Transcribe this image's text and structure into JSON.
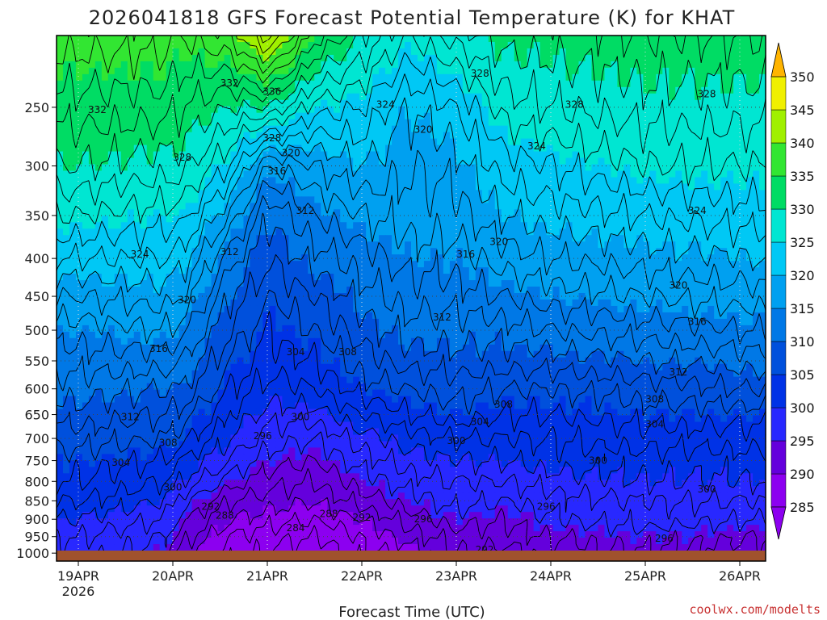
{
  "chart_data": {
    "type": "heatmap",
    "title": "2026041818 GFS Forecast Potential Temperature (K) for KHAT",
    "xlabel": "Forecast Time (UTC)",
    "ylabel": "",
    "credit": "coolwx.com/modelts",
    "x_ticks": [
      "19APR",
      "20APR",
      "21APR",
      "22APR",
      "23APR",
      "24APR",
      "25APR",
      "26APR"
    ],
    "x_year": "2026",
    "y_ticks": [
      250,
      300,
      350,
      400,
      450,
      500,
      550,
      600,
      650,
      700,
      750,
      800,
      850,
      900,
      950,
      1000
    ],
    "ylim": [
      1025,
      200
    ],
    "y_scale": "log-pressure",
    "grid": "dotted",
    "colorbar": {
      "levels": [
        285,
        290,
        295,
        300,
        305,
        310,
        315,
        320,
        325,
        330,
        335,
        340,
        345,
        350
      ],
      "colors": [
        "#8c00f0",
        "#6400dc",
        "#2828ff",
        "#0032e6",
        "#0050dc",
        "#0078e6",
        "#00a0f0",
        "#00c8f5",
        "#00e6d2",
        "#00dc64",
        "#32e632",
        "#a0f000",
        "#f0f000",
        "#ffb400"
      ],
      "extend": "both",
      "placement": "right"
    },
    "contour_labels": [
      {
        "value": "332",
        "time": 0.2,
        "p": 252
      },
      {
        "value": "332",
        "time": 1.6,
        "p": 232
      },
      {
        "value": "336",
        "time": 2.05,
        "p": 238
      },
      {
        "value": "328",
        "time": 2.05,
        "p": 275
      },
      {
        "value": "320",
        "time": 2.25,
        "p": 288
      },
      {
        "value": "316",
        "time": 2.1,
        "p": 305
      },
      {
        "value": "312",
        "time": 2.4,
        "p": 345
      },
      {
        "value": "328",
        "time": 1.1,
        "p": 292
      },
      {
        "value": "324",
        "time": 0.65,
        "p": 395
      },
      {
        "value": "312",
        "time": 1.6,
        "p": 392
      },
      {
        "value": "320",
        "time": 1.15,
        "p": 455
      },
      {
        "value": "316",
        "time": 0.85,
        "p": 530
      },
      {
        "value": "312",
        "time": 0.55,
        "p": 655
      },
      {
        "value": "308",
        "time": 0.95,
        "p": 710
      },
      {
        "value": "304",
        "time": 0.45,
        "p": 755
      },
      {
        "value": "300",
        "time": 1.0,
        "p": 815
      },
      {
        "value": "292",
        "time": 1.4,
        "p": 865
      },
      {
        "value": "288",
        "time": 1.55,
        "p": 890
      },
      {
        "value": "296",
        "time": 1.95,
        "p": 695
      },
      {
        "value": "300",
        "time": 2.35,
        "p": 655
      },
      {
        "value": "304",
        "time": 2.3,
        "p": 535
      },
      {
        "value": "308",
        "time": 2.85,
        "p": 535
      },
      {
        "value": "284",
        "time": 2.3,
        "p": 925
      },
      {
        "value": "288",
        "time": 2.65,
        "p": 885
      },
      {
        "value": "292",
        "time": 3.0,
        "p": 895
      },
      {
        "value": "296",
        "time": 3.65,
        "p": 900
      },
      {
        "value": "324",
        "time": 3.25,
        "p": 248
      },
      {
        "value": "320",
        "time": 3.65,
        "p": 268
      },
      {
        "value": "328",
        "time": 4.25,
        "p": 225
      },
      {
        "value": "316",
        "time": 4.1,
        "p": 395
      },
      {
        "value": "320",
        "time": 4.45,
        "p": 380
      },
      {
        "value": "312",
        "time": 3.85,
        "p": 480
      },
      {
        "value": "308",
        "time": 4.5,
        "p": 630
      },
      {
        "value": "304",
        "time": 4.25,
        "p": 665
      },
      {
        "value": "300",
        "time": 4.0,
        "p": 705
      },
      {
        "value": "292",
        "time": 4.3,
        "p": 990
      },
      {
        "value": "296",
        "time": 4.95,
        "p": 865
      },
      {
        "value": "324",
        "time": 4.85,
        "p": 282
      },
      {
        "value": "328",
        "time": 5.25,
        "p": 248
      },
      {
        "value": "328",
        "time": 6.65,
        "p": 240
      },
      {
        "value": "324",
        "time": 6.55,
        "p": 345
      },
      {
        "value": "320",
        "time": 6.35,
        "p": 435
      },
      {
        "value": "316",
        "time": 6.55,
        "p": 487
      },
      {
        "value": "312",
        "time": 6.35,
        "p": 570
      },
      {
        "value": "308",
        "time": 6.1,
        "p": 620
      },
      {
        "value": "304",
        "time": 6.1,
        "p": 670
      },
      {
        "value": "300",
        "time": 5.5,
        "p": 750
      },
      {
        "value": "300",
        "time": 6.65,
        "p": 820
      },
      {
        "value": "296",
        "time": 6.2,
        "p": 955
      }
    ],
    "theta_profile": {
      "p": [
        1000,
        950,
        900,
        850,
        800,
        750,
        700,
        650,
        600,
        550,
        500,
        450,
        400,
        350,
        300,
        250,
        200
      ],
      "series": [
        {
          "time": 0.0,
          "theta": [
            297,
            298,
            300,
            302,
            304,
            305,
            307,
            309,
            311,
            313,
            315,
            318,
            322,
            326,
            330,
            333,
            337
          ]
        },
        {
          "time": 0.9,
          "theta": [
            295,
            296,
            298,
            300,
            302,
            304,
            306,
            308,
            310,
            313,
            316,
            319,
            322,
            325,
            329,
            333,
            337
          ]
        },
        {
          "time": 1.1,
          "theta": [
            291,
            293,
            295,
            297,
            300,
            302,
            305,
            307,
            310,
            312,
            315,
            318,
            321,
            325,
            329,
            332,
            336
          ]
        },
        {
          "time": 1.6,
          "theta": [
            287,
            288,
            290,
            292,
            295,
            298,
            300,
            302,
            304,
            306,
            308,
            310,
            313,
            318,
            324,
            330,
            338
          ]
        },
        {
          "time": 2.0,
          "theta": [
            286,
            287,
            289,
            291,
            293,
            295,
            297,
            299,
            301,
            303,
            304,
            306,
            308,
            310,
            316,
            330,
            345
          ]
        },
        {
          "time": 2.5,
          "theta": [
            284,
            286,
            288,
            290,
            292,
            294,
            296,
            299,
            302,
            304,
            306,
            308,
            311,
            314,
            318,
            325,
            335
          ]
        },
        {
          "time": 3.0,
          "theta": [
            287,
            288,
            290,
            293,
            295,
            297,
            299,
            302,
            305,
            307,
            309,
            311,
            313,
            316,
            320,
            324,
            330
          ]
        },
        {
          "time": 3.5,
          "theta": [
            289,
            291,
            293,
            295,
            297,
            299,
            301,
            304,
            306,
            309,
            311,
            313,
            315,
            317,
            318,
            320,
            326
          ]
        },
        {
          "time": 4.0,
          "theta": [
            292,
            293,
            295,
            297,
            298,
            300,
            302,
            305,
            307,
            309,
            311,
            313,
            315,
            317,
            319,
            322,
            329
          ]
        },
        {
          "time": 4.5,
          "theta": [
            291,
            293,
            294,
            296,
            298,
            300,
            302,
            304,
            306,
            309,
            311,
            314,
            317,
            320,
            323,
            327,
            331
          ]
        },
        {
          "time": 5.0,
          "theta": [
            293,
            294,
            296,
            297,
            299,
            301,
            302,
            304,
            306,
            309,
            312,
            315,
            318,
            321,
            324,
            328,
            331
          ]
        },
        {
          "time": 6.0,
          "theta": [
            294,
            295,
            297,
            298,
            300,
            301,
            303,
            305,
            307,
            310,
            313,
            316,
            319,
            322,
            326,
            329,
            332
          ]
        },
        {
          "time": 7.1,
          "theta": [
            293,
            294,
            296,
            298,
            300,
            301,
            303,
            305,
            308,
            311,
            314,
            317,
            320,
            323,
            326,
            329,
            332
          ]
        }
      ]
    }
  }
}
